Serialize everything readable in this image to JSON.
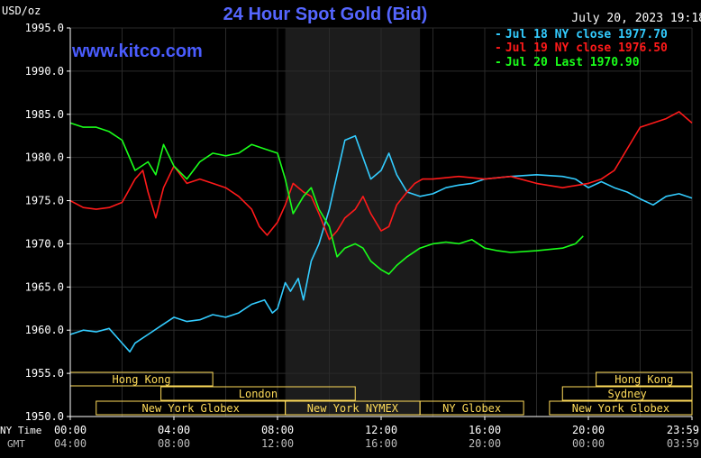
{
  "chart_data": {
    "type": "line",
    "title": "24 Hour Spot Gold (Bid)",
    "ylabel": "USD/oz",
    "watermark": "www.kitco.com",
    "timestamp": "July 20, 2023 19:18",
    "ylim": [
      1950,
      1995
    ],
    "xlim": [
      0,
      24
    ],
    "y_ticks": [
      "1995.0",
      "1990.0",
      "1985.0",
      "1980.0",
      "1975.0",
      "1970.0",
      "1965.0",
      "1960.0",
      "1955.0",
      "1950.0"
    ],
    "x_ticks_ny": [
      "00:00",
      "04:00",
      "08:00",
      "12:00",
      "16:00",
      "20:00",
      "23:59"
    ],
    "x_ticks_gmt": [
      "04:00",
      "08:00",
      "12:00",
      "16:00",
      "20:00",
      "00:00",
      "03:59"
    ],
    "axis_label_ny": "NY Time",
    "axis_label_gmt": "GMT",
    "shaded_session": [
      8.3,
      13.5
    ],
    "colors": {
      "jul18": "#33ccff",
      "jul19": "#ff1a1a",
      "jul20": "#1aff1a",
      "grid": "#2a2a2a",
      "axis": "#ffffff",
      "title": "#5566ff",
      "session": "#ffdc5a"
    },
    "legend": [
      {
        "text": "Jul 18 NY close 1977.70",
        "color": "#33ccff"
      },
      {
        "text": "Jul 19 NY close 1976.50",
        "color": "#ff1a1a"
      },
      {
        "text": "Jul 20 Last 1970.90",
        "color": "#1aff1a"
      }
    ],
    "series": [
      {
        "name": "Jul 18 NY close 1977.70",
        "color": "#33ccff",
        "x": [
          0,
          0.5,
          1.0,
          1.5,
          2.0,
          2.3,
          2.5,
          3.0,
          3.5,
          4.0,
          4.5,
          5.0,
          5.5,
          6.0,
          6.5,
          7.0,
          7.5,
          7.8,
          8.0,
          8.3,
          8.5,
          8.8,
          9.0,
          9.3,
          9.6,
          10.0,
          10.3,
          10.6,
          11.0,
          11.3,
          11.6,
          12.0,
          12.3,
          12.6,
          13.0,
          13.5,
          14.0,
          14.5,
          15.0,
          15.5,
          16.0,
          17.0,
          18.0,
          19.0,
          19.5,
          20.0,
          20.5,
          21.0,
          21.5,
          22.0,
          22.5,
          23.0,
          23.5,
          24.0
        ],
        "y": [
          1959.5,
          1960.0,
          1959.8,
          1960.2,
          1958.5,
          1957.5,
          1958.5,
          1959.5,
          1960.5,
          1961.5,
          1961.0,
          1961.2,
          1961.8,
          1961.5,
          1962.0,
          1963.0,
          1963.5,
          1962.0,
          1962.5,
          1965.5,
          1964.5,
          1966.0,
          1963.5,
          1968.0,
          1970.0,
          1974.0,
          1978.0,
          1982.0,
          1982.5,
          1980.0,
          1977.5,
          1978.5,
          1980.5,
          1978.0,
          1976.0,
          1975.5,
          1975.8,
          1976.5,
          1976.8,
          1977.0,
          1977.5,
          1977.8,
          1978.0,
          1977.8,
          1977.5,
          1976.5,
          1977.2,
          1976.5,
          1976.0,
          1975.2,
          1974.5,
          1975.5,
          1975.8,
          1975.3
        ]
      },
      {
        "name": "Jul 19 NY close 1976.50",
        "color": "#ff1a1a",
        "x": [
          0,
          0.5,
          1.0,
          1.5,
          2.0,
          2.5,
          2.8,
          3.0,
          3.3,
          3.6,
          4.0,
          4.5,
          5.0,
          5.5,
          6.0,
          6.5,
          7.0,
          7.3,
          7.6,
          8.0,
          8.3,
          8.6,
          9.0,
          9.3,
          9.6,
          10.0,
          10.3,
          10.6,
          11.0,
          11.3,
          11.6,
          12.0,
          12.3,
          12.6,
          13.0,
          13.3,
          13.6,
          14.0,
          15.0,
          16.0,
          17.0,
          18.0,
          19.0,
          20.0,
          20.5,
          21.0,
          21.5,
          22.0,
          22.5,
          23.0,
          23.5,
          24.0
        ],
        "y": [
          1975.0,
          1974.2,
          1974.0,
          1974.2,
          1974.8,
          1977.5,
          1978.5,
          1976.0,
          1973.0,
          1976.5,
          1979.0,
          1977.0,
          1977.5,
          1977.0,
          1976.5,
          1975.5,
          1974.0,
          1972.0,
          1971.0,
          1972.5,
          1974.5,
          1977.0,
          1976.0,
          1975.5,
          1973.5,
          1970.5,
          1971.5,
          1973.0,
          1974.0,
          1975.5,
          1973.5,
          1971.5,
          1972.0,
          1974.5,
          1976.0,
          1977.0,
          1977.5,
          1977.5,
          1977.8,
          1977.5,
          1977.8,
          1977.0,
          1976.5,
          1977.0,
          1977.5,
          1978.5,
          1981.0,
          1983.5,
          1984.0,
          1984.5,
          1985.3,
          1984.0
        ]
      },
      {
        "name": "Jul 20 Last 1970.90",
        "color": "#1aff1a",
        "x": [
          0,
          0.5,
          1.0,
          1.5,
          2.0,
          2.5,
          3.0,
          3.3,
          3.6,
          4.0,
          4.5,
          5.0,
          5.5,
          6.0,
          6.5,
          7.0,
          7.5,
          8.0,
          8.3,
          8.6,
          9.0,
          9.3,
          9.6,
          10.0,
          10.3,
          10.6,
          11.0,
          11.3,
          11.6,
          12.0,
          12.3,
          12.6,
          13.0,
          13.5,
          14.0,
          14.5,
          15.0,
          15.5,
          16.0,
          16.5,
          17.0,
          18.0,
          19.0,
          19.5,
          19.8
        ],
        "y": [
          1984.0,
          1983.5,
          1983.5,
          1983.0,
          1982.0,
          1978.5,
          1979.5,
          1978.0,
          1981.5,
          1979.0,
          1977.5,
          1979.5,
          1980.5,
          1980.2,
          1980.5,
          1981.5,
          1981.0,
          1980.5,
          1977.5,
          1973.5,
          1975.5,
          1976.5,
          1974.0,
          1972.0,
          1968.5,
          1969.5,
          1970.0,
          1969.5,
          1968.0,
          1967.0,
          1966.5,
          1967.5,
          1968.5,
          1969.5,
          1970.0,
          1970.2,
          1970.0,
          1970.5,
          1969.5,
          1969.2,
          1969.0,
          1969.2,
          1969.5,
          1970.0,
          1970.9
        ]
      }
    ],
    "sessions": [
      {
        "label": "Hong Kong",
        "row": 0,
        "start": 0,
        "end": 5.5
      },
      {
        "label": "Hong Kong",
        "row": 0,
        "start": 20.3,
        "end": 24
      },
      {
        "label": "London",
        "row": 1,
        "start": 3.5,
        "end": 11.0
      },
      {
        "label": "Sydney",
        "row": 1,
        "start": 19.0,
        "end": 24
      },
      {
        "label": "New York Globex",
        "row": 2,
        "start": 1.0,
        "end": 8.3
      },
      {
        "label": "New York NYMEX",
        "row": 2,
        "start": 8.3,
        "end": 13.5
      },
      {
        "label": "NY Globex",
        "row": 2,
        "start": 13.5,
        "end": 17.5
      },
      {
        "label": "New York Globex",
        "row": 2,
        "start": 18.5,
        "end": 24
      }
    ]
  }
}
